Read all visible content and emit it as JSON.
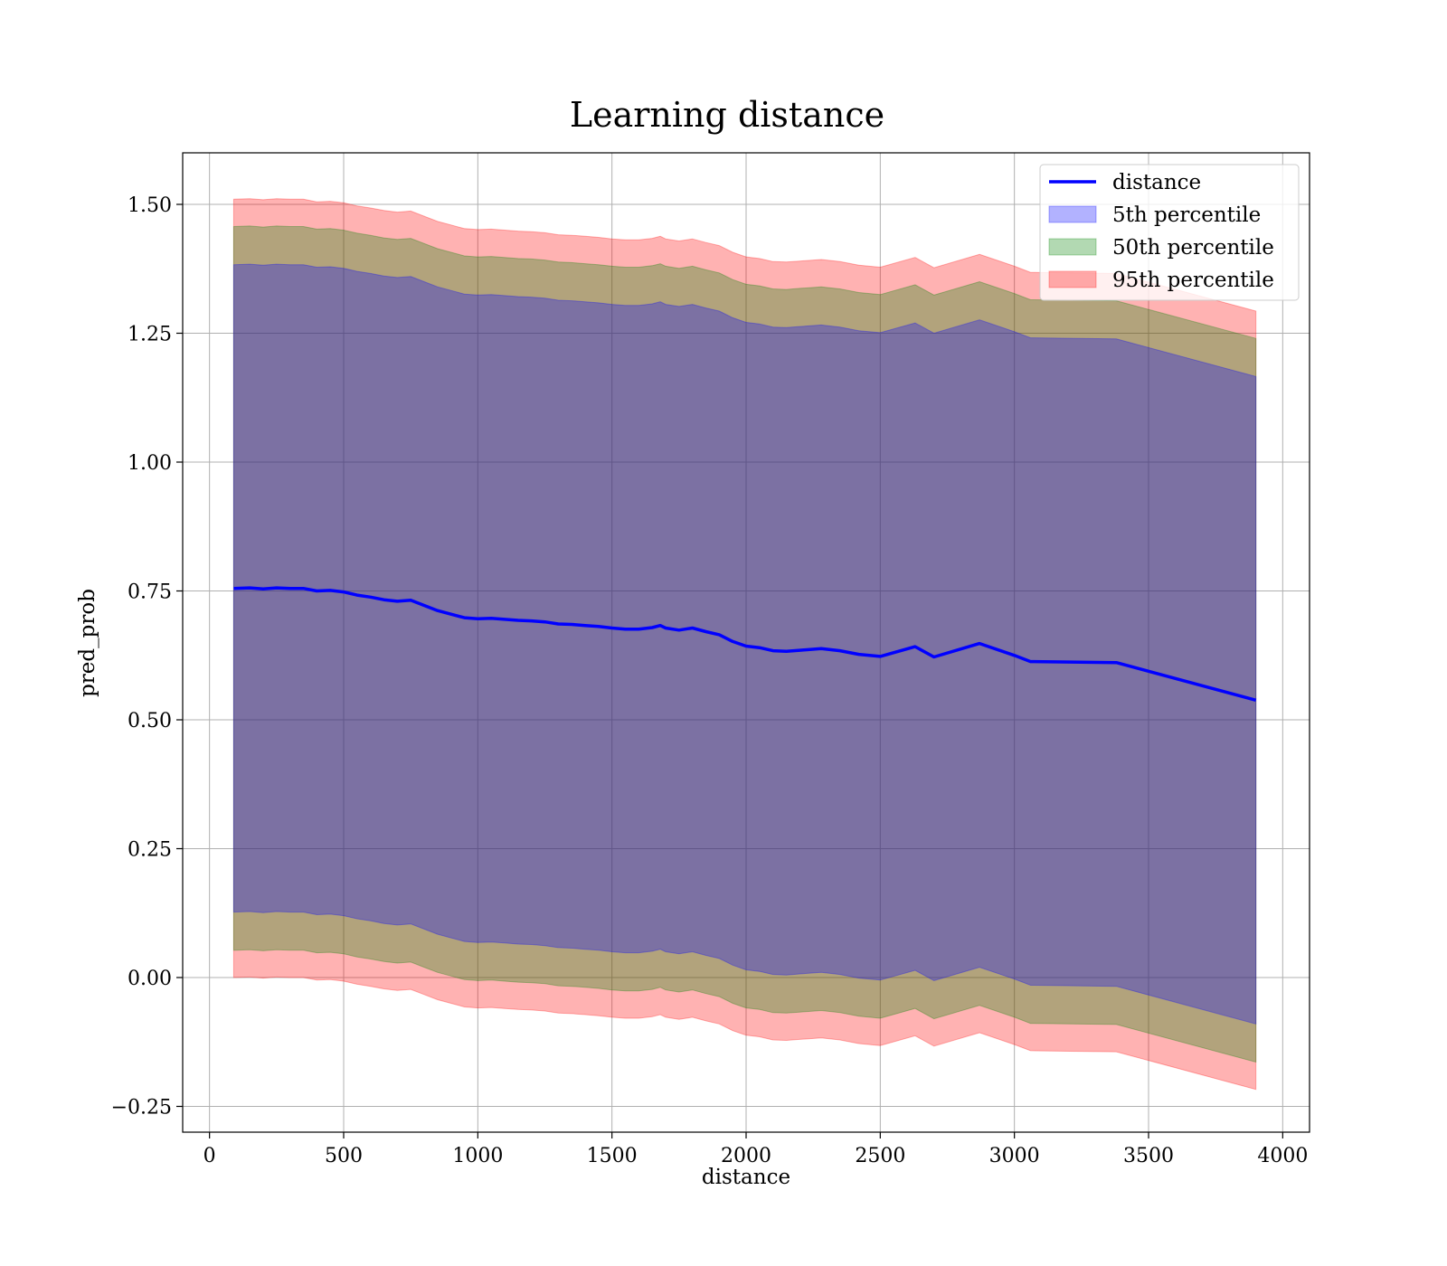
{
  "chart_data": {
    "type": "line",
    "title": "Learning distance",
    "xlabel": "distance",
    "ylabel": "pred_prob",
    "xlim": [
      -100,
      4100
    ],
    "ylim": [
      -0.3,
      1.6
    ],
    "xticks": [
      0,
      500,
      1000,
      1500,
      2000,
      2500,
      3000,
      3500,
      4000
    ],
    "xtick_labels": [
      "0",
      "500",
      "1000",
      "1500",
      "2000",
      "2500",
      "3000",
      "3500",
      "4000"
    ],
    "yticks": [
      -0.25,
      0.0,
      0.25,
      0.5,
      0.75,
      1.0,
      1.25,
      1.5
    ],
    "ytick_labels": [
      "−0.25",
      "0.00",
      "0.25",
      "0.50",
      "0.75",
      "1.00",
      "1.25",
      "1.50"
    ],
    "grid": true,
    "legend_position": "top-right",
    "x": [
      90,
      150,
      200,
      250,
      300,
      350,
      400,
      450,
      500,
      550,
      600,
      650,
      700,
      750,
      800,
      850,
      900,
      950,
      1000,
      1050,
      1100,
      1150,
      1200,
      1250,
      1300,
      1350,
      1400,
      1450,
      1500,
      1550,
      1600,
      1650,
      1680,
      1700,
      1750,
      1800,
      1850,
      1900,
      1950,
      2000,
      2050,
      2100,
      2150,
      2200,
      2280,
      2350,
      2420,
      2500,
      2630,
      2700,
      2870,
      3000,
      3060,
      3380,
      3900
    ],
    "series": [
      {
        "name": "distance",
        "kind": "line",
        "color": "#0000ff",
        "values": [
          0.755,
          0.756,
          0.754,
          0.756,
          0.755,
          0.755,
          0.75,
          0.751,
          0.748,
          0.742,
          0.738,
          0.733,
          0.73,
          0.732,
          0.722,
          0.712,
          0.705,
          0.698,
          0.696,
          0.697,
          0.695,
          0.693,
          0.692,
          0.69,
          0.686,
          0.685,
          0.683,
          0.681,
          0.678,
          0.676,
          0.676,
          0.679,
          0.683,
          0.678,
          0.674,
          0.678,
          0.671,
          0.665,
          0.652,
          0.643,
          0.64,
          0.634,
          0.633,
          0.635,
          0.638,
          0.634,
          0.627,
          0.623,
          0.642,
          0.622,
          0.648,
          0.625,
          0.613,
          0.611,
          0.538
        ]
      },
      {
        "name": "5th percentile",
        "kind": "band",
        "color": "#0000ff",
        "offset": 0.628
      },
      {
        "name": "50th percentile",
        "kind": "band",
        "color": "#008000",
        "offset": 0.702
      },
      {
        "name": "95th percentile",
        "kind": "band",
        "color": "#ff0000",
        "offset": 0.755
      }
    ]
  }
}
